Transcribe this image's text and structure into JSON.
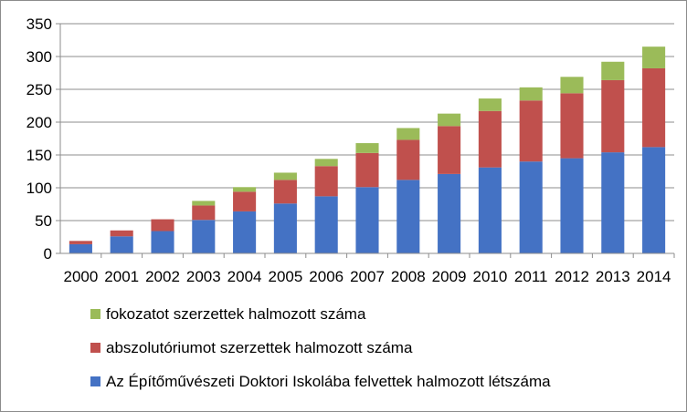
{
  "chart_data": {
    "type": "bar",
    "stacked": true,
    "categories": [
      "2000",
      "2001",
      "2002",
      "2003",
      "2004",
      "2005",
      "2006",
      "2007",
      "2008",
      "2009",
      "2010",
      "2011",
      "2012",
      "2013",
      "2014"
    ],
    "series": [
      {
        "name": "Az Építőművészeti Doktori Iskolába felvettek halmozott létszáma",
        "color": "#4472C4",
        "values": [
          14,
          26,
          34,
          51,
          64,
          76,
          87,
          101,
          112,
          121,
          131,
          140,
          145,
          154,
          162
        ]
      },
      {
        "name": "abszolutóriumot szerzettek halmozott száma",
        "color": "#C0504D",
        "values": [
          5,
          9,
          18,
          22,
          30,
          36,
          46,
          52,
          61,
          73,
          86,
          93,
          99,
          110,
          120
        ]
      },
      {
        "name": "fokozatot szerzettek halmozott száma",
        "color": "#9BBB59",
        "values": [
          0,
          0,
          0,
          7,
          7,
          11,
          11,
          15,
          18,
          19,
          19,
          20,
          25,
          28,
          33
        ]
      }
    ],
    "ylim": [
      0,
      350
    ],
    "yticks": [
      0,
      50,
      100,
      150,
      200,
      250,
      300,
      350
    ],
    "grid": true,
    "legend_position": "bottom"
  }
}
